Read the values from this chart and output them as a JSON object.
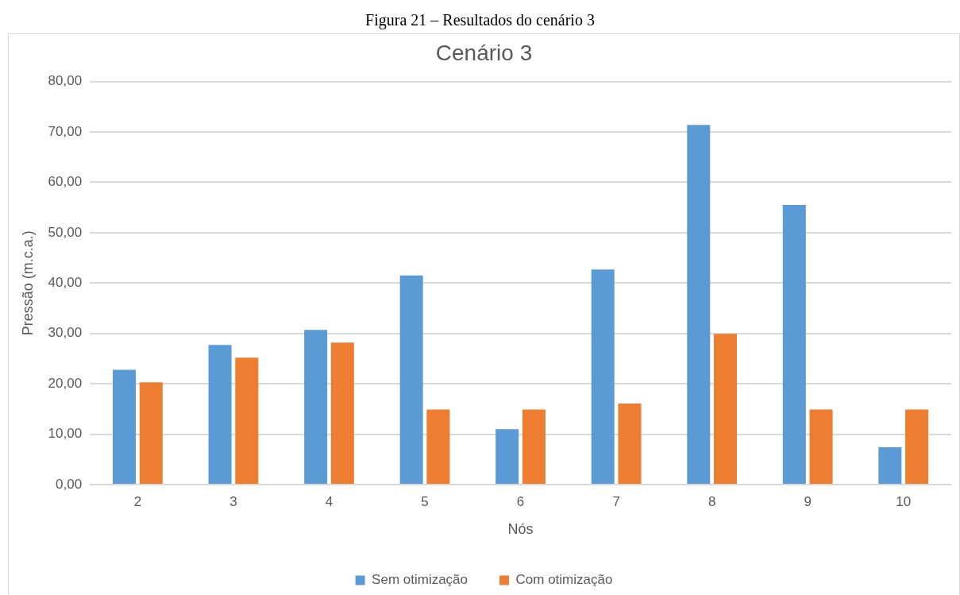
{
  "chart_data": {
    "type": "bar",
    "title": "Figura 21 – Resultados do cenário 3",
    "subtitle": "Cenário 3",
    "xlabel": "Nós",
    "ylabel": "Pressão (m.c.a.)",
    "categories": [
      "2",
      "3",
      "4",
      "5",
      "6",
      "7",
      "8",
      "9",
      "10"
    ],
    "series": [
      {
        "name": "Sem otimização",
        "color": "#5b9bd5",
        "values": [
          22.8,
          27.7,
          30.7,
          41.5,
          11.0,
          42.7,
          71.4,
          55.5,
          7.4
        ]
      },
      {
        "name": "Com otimização",
        "color": "#ed7d31",
        "values": [
          20.3,
          25.2,
          28.2,
          14.9,
          14.9,
          16.1,
          29.9,
          14.9,
          14.9
        ]
      }
    ],
    "ylim": [
      0,
      80
    ],
    "yticks": [
      {
        "value": 0,
        "label": "0,00"
      },
      {
        "value": 10,
        "label": "10,00"
      },
      {
        "value": 20,
        "label": "20,00"
      },
      {
        "value": 30,
        "label": "30,00"
      },
      {
        "value": 40,
        "label": "40,00"
      },
      {
        "value": 50,
        "label": "50,00"
      },
      {
        "value": 60,
        "label": "60,00"
      },
      {
        "value": 70,
        "label": "70,00"
      },
      {
        "value": 80,
        "label": "80,00"
      }
    ],
    "grid": "y",
    "legend": "bottom"
  }
}
